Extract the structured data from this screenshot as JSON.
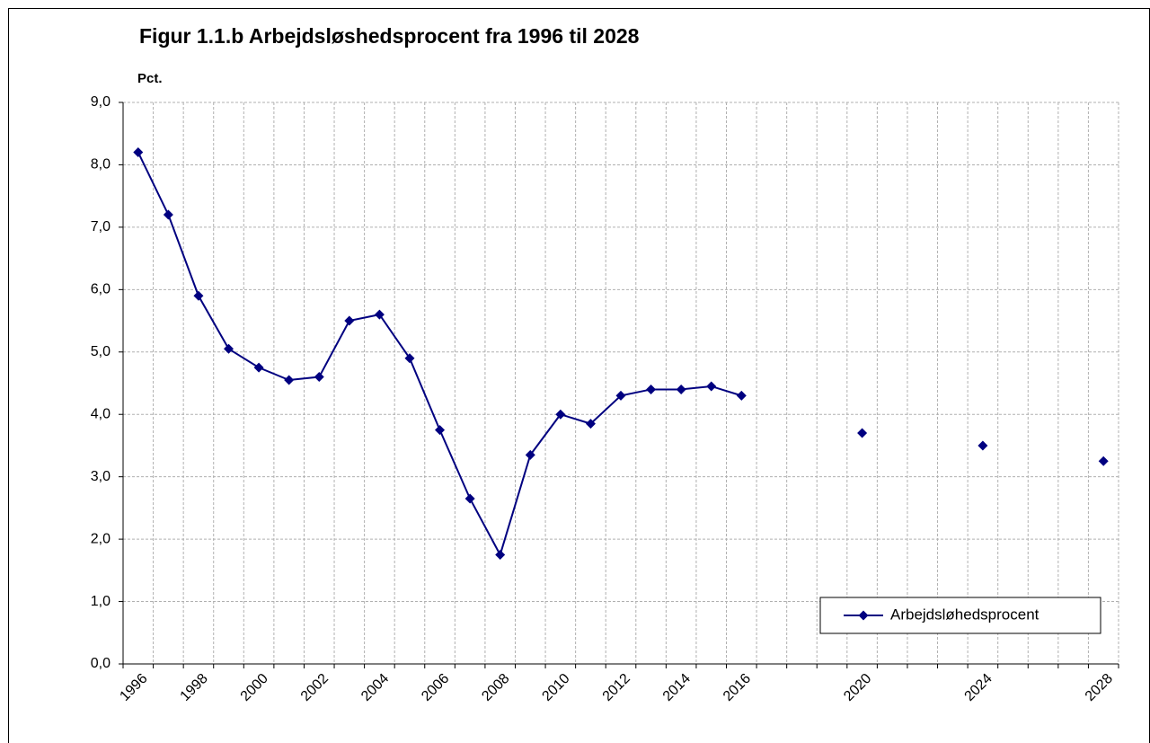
{
  "chart_data": {
    "type": "line",
    "title": "Figur 1.1.b Arbejdsløshedsprocent fra 1996 til 2028",
    "y_label": "Pct.",
    "categories": [
      "1996",
      null,
      "1998",
      null,
      "2000",
      null,
      "2002",
      null,
      "2004",
      null,
      "2006",
      null,
      "2008",
      null,
      "2010",
      null,
      "2012",
      null,
      "2014",
      null,
      "2016",
      null,
      null,
      null,
      "2020",
      null,
      null,
      null,
      "2024",
      null,
      null,
      null,
      "2028"
    ],
    "series": [
      {
        "name": "Arbejdsløhedsprocent",
        "color": "#000080",
        "values": [
          8.2,
          7.2,
          5.9,
          5.05,
          4.75,
          4.55,
          4.6,
          5.5,
          5.6,
          4.9,
          3.75,
          2.65,
          1.75,
          3.35,
          4.0,
          3.85,
          4.3,
          4.4,
          4.4,
          4.45,
          4.3,
          null,
          null,
          null,
          3.7,
          null,
          null,
          null,
          3.5,
          null,
          null,
          null,
          3.25
        ]
      }
    ],
    "ylim": [
      0,
      9
    ],
    "yticks": [
      {
        "value": 0,
        "label": "0,0"
      },
      {
        "value": 1,
        "label": "1,0"
      },
      {
        "value": 2,
        "label": "2,0"
      },
      {
        "value": 3,
        "label": "3,0"
      },
      {
        "value": 4,
        "label": "4,0"
      },
      {
        "value": 5,
        "label": "5,0"
      },
      {
        "value": 6,
        "label": "6,0"
      },
      {
        "value": 7,
        "label": "7,0"
      },
      {
        "value": 8,
        "label": "8,0"
      },
      {
        "value": 9,
        "label": "9,0"
      }
    ],
    "grid": true,
    "legend": "lower right"
  }
}
